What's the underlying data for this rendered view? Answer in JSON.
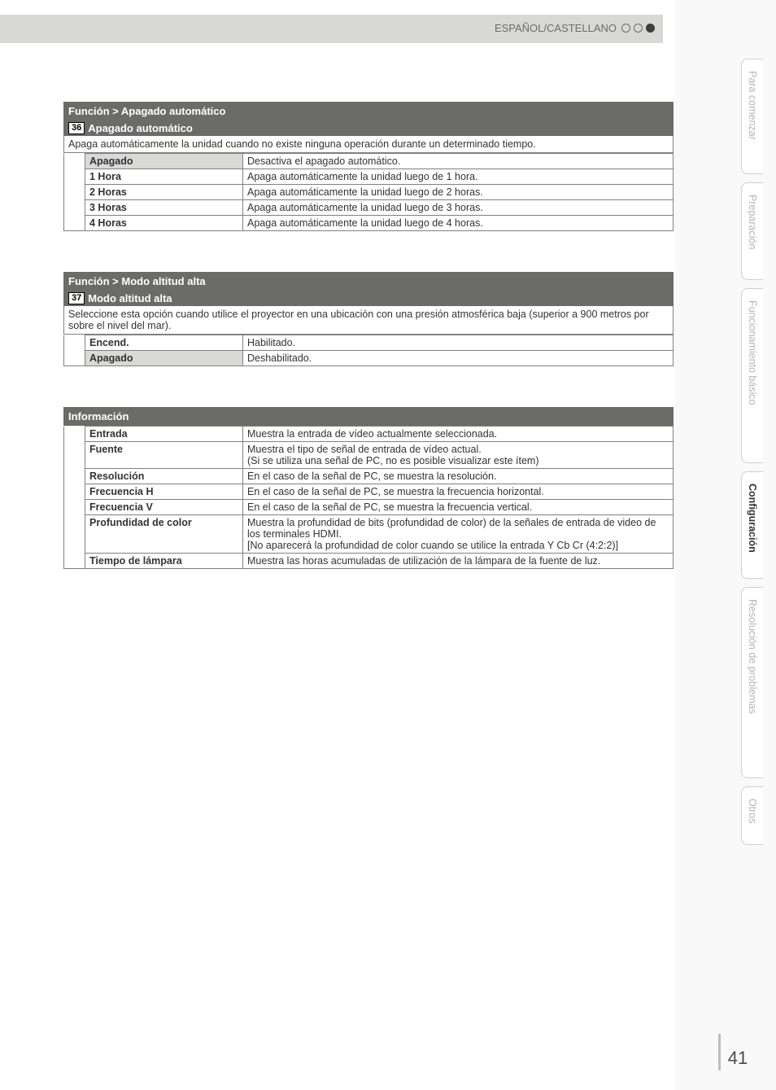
{
  "header": {
    "language_label": "ESPAÑOL/CASTELLANO"
  },
  "sections": {
    "auto_off": {
      "breadcrumb": "Función > Apagado automático",
      "number": "36",
      "title": "Apagado automático",
      "description": "Apaga automáticamente la unidad cuando no existe ninguna operación durante un determinado tiempo.",
      "rows": [
        {
          "key": "Apagado",
          "val": "Desactiva el apagado automático.",
          "inactive": true
        },
        {
          "key": "1 Hora",
          "val": "Apaga automáticamente la unidad luego de 1 hora."
        },
        {
          "key": "2 Horas",
          "val": "Apaga automáticamente la unidad luego de 2 horas."
        },
        {
          "key": "3 Horas",
          "val": "Apaga automáticamente la unidad luego de 3 horas."
        },
        {
          "key": "4 Horas",
          "val": "Apaga automáticamente la unidad luego de 4 horas."
        }
      ]
    },
    "high_alt": {
      "breadcrumb": "Función > Modo altitud alta",
      "number": "37",
      "title": "Modo altitud alta",
      "description": "Seleccione esta opción cuando utilice el proyector en una ubicación con una presión atmosférica baja (superior a 900 metros por sobre el nivel del mar).",
      "rows": [
        {
          "key": "Encend.",
          "val": "Habilitado."
        },
        {
          "key": "Apagado",
          "val": "Deshabilitado.",
          "inactive": true
        }
      ]
    },
    "info": {
      "breadcrumb": "Información",
      "rows": [
        {
          "key": "Entrada",
          "val": "Muestra la entrada de vídeo actualmente seleccionada."
        },
        {
          "key": "Fuente",
          "val": "Muestra el tipo de señal de entrada de vídeo actual.\n(Si se utiliza una señal de PC, no es posible visualizar este ítem)"
        },
        {
          "key": "Resolución",
          "val": "En el caso de la señal de PC, se muestra la resolución."
        },
        {
          "key": "Frecuencia H",
          "val": "En el caso de la señal de PC, se muestra la frecuencia horizontal."
        },
        {
          "key": "Frecuencia V",
          "val": "En el caso de la señal de PC, se muestra la frecuencia vertical."
        },
        {
          "key": "Profundidad de color",
          "val": "Muestra la profundidad de bits (profundidad de color) de la señales de entrada de video de los terminales HDMI.\n[No aparecerá la profundidad de color cuando se utilice la entrada Y Cb Cr (4:2:2)]"
        },
        {
          "key": "Tiempo de lámpara",
          "val": "Muestra las horas acumuladas de utilización de la lámpara de la fuente de luz."
        }
      ]
    }
  },
  "sidetabs": [
    {
      "label": "Para comenzar",
      "cls": "h1"
    },
    {
      "label": "Preparación",
      "cls": "h2"
    },
    {
      "label": "Funcionamiento básico",
      "cls": "h3"
    },
    {
      "label": "Configuración",
      "cls": "h4",
      "active": true
    },
    {
      "label": "Resolución de problemas",
      "cls": "h5"
    },
    {
      "label": "Otros",
      "cls": "h6"
    }
  ],
  "page_number": "41",
  "colors": {
    "header_bg": "#6b6b6a",
    "header_fg": "#ffffff",
    "border": "#808080",
    "inactive_bg": "#d9d9d8",
    "topbar_bg": "#d8d8d7",
    "tab_inactive_fg": "#b5b5b4",
    "tab_border": "#cfcfcf",
    "text": "#333333"
  }
}
